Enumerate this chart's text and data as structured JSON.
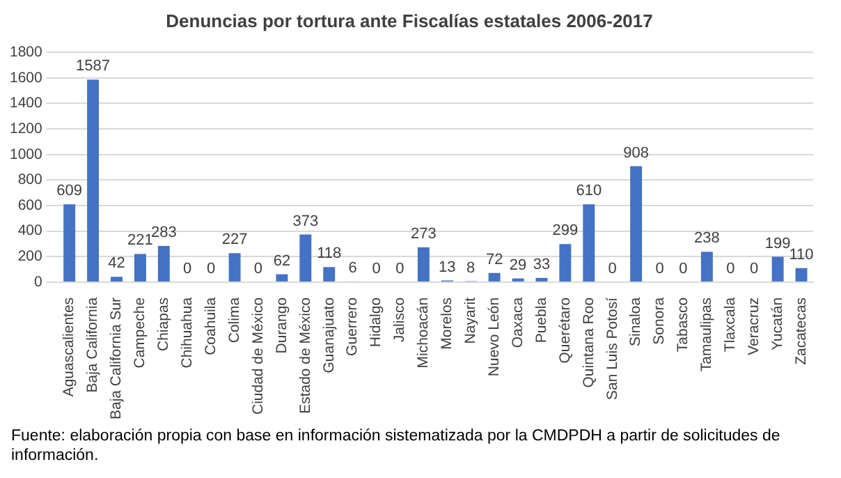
{
  "chart_data": {
    "type": "bar",
    "title": "Denuncias por tortura ante Fiscalías estatales 2006-2017",
    "categories": [
      "Aguascalientes",
      "Baja California",
      "Baja California Sur",
      "Campeche",
      "Chiapas",
      "Chihuahua",
      "Coahuila",
      "Colima",
      "Ciudad de México",
      "Durango",
      "Estado de México",
      "Guanajuato",
      "Guerrero",
      "Hidalgo",
      "Jalisco",
      "Michoacán",
      "Morelos",
      "Nayarit",
      "Nuevo León",
      "Oaxaca",
      "Puebla",
      "Querétaro",
      "Quintana Roo",
      "San Luis Potosí",
      "Sinaloa",
      "Sonora",
      "Tabasco",
      "Tamaulipas",
      "Tlaxcala",
      "Veracruz",
      "Yucatán",
      "Zacatecas"
    ],
    "values": [
      609,
      1587,
      42,
      221,
      283,
      0,
      0,
      227,
      0,
      62,
      373,
      118,
      6,
      0,
      0,
      273,
      13,
      8,
      72,
      29,
      33,
      299,
      610,
      0,
      908,
      0,
      0,
      238,
      0,
      0,
      199,
      110
    ],
    "color": "#4472c4",
    "ylim": [
      0,
      1800
    ],
    "yticks": [
      0,
      200,
      400,
      600,
      800,
      1000,
      1200,
      1400,
      1600,
      1800
    ],
    "grid": "y",
    "data_labels": true,
    "annotations": [
      "Fuente: elaboración propia con base en información sistematizada por la CMDPDH a partir de solicitudes de información."
    ]
  }
}
